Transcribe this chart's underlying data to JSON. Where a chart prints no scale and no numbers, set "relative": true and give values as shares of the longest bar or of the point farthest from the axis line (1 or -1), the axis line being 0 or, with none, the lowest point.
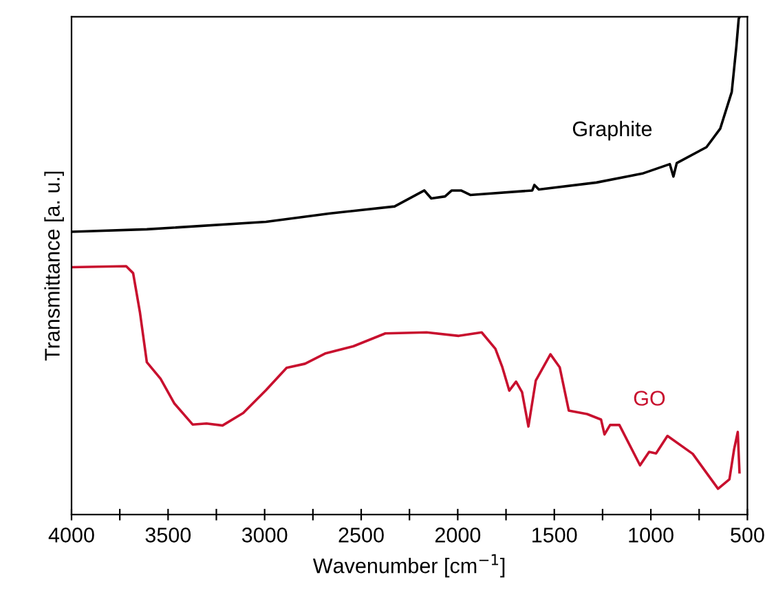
{
  "chart_data": {
    "type": "line",
    "relative": true,
    "xlabel": "Wavenumber [cm$^{−1}$]",
    "ylabel": "Transmittance [a. u.]",
    "xlim": [
      4000,
      500
    ],
    "xticks": [
      4000,
      {
        "value": 3750,
        "label": null
      },
      3500,
      {
        "value": 3250,
        "label": null
      },
      3000,
      {
        "value": 2750,
        "label": null
      },
      2500,
      {
        "value": 2250,
        "label": null
      },
      2000,
      {
        "value": 1750,
        "label": null
      },
      1500,
      {
        "value": 1250,
        "label": null
      },
      1000,
      {
        "value": 750,
        "label": null
      },
      500
    ],
    "grid": false,
    "legend": false,
    "marker": "none",
    "line_style": "solid",
    "series": [
      {
        "name": "Graphite",
        "color": "#000000",
        "x": [
          4000,
          3610,
          2993,
          2660,
          2327,
          2173,
          2137,
          2066,
          2031,
          1983,
          1935,
          1614,
          1603,
          1580,
          1282,
          1044,
          902,
          883,
          866,
          712,
          641,
          581,
          557,
          545,
          540
        ],
        "values": [
          0.568,
          0.573,
          0.588,
          0.605,
          0.619,
          0.651,
          0.635,
          0.639,
          0.651,
          0.651,
          0.642,
          0.651,
          0.662,
          0.653,
          0.667,
          0.685,
          0.704,
          0.679,
          0.706,
          0.738,
          0.775,
          0.849,
          0.941,
          0.996,
          1.0
        ]
      },
      {
        "name": "GO",
        "color": "#c8102e",
        "x": [
          4000,
          3717,
          3681,
          3646,
          3610,
          3539,
          3467,
          3373,
          3301,
          3218,
          3111,
          2993,
          2886,
          2791,
          2684,
          2541,
          2375,
          2161,
          1995,
          1876,
          1805,
          1769,
          1733,
          1698,
          1667,
          1634,
          1596,
          1520,
          1472,
          1425,
          1330,
          1258,
          1240,
          1211,
          1163,
          1056,
          1009,
          973,
          914,
          783,
          652,
          593,
          569,
          550,
          541
        ],
        "values": [
          0.497,
          0.499,
          0.485,
          0.407,
          0.306,
          0.273,
          0.223,
          0.181,
          0.183,
          0.179,
          0.204,
          0.25,
          0.295,
          0.303,
          0.324,
          0.338,
          0.364,
          0.366,
          0.359,
          0.366,
          0.333,
          0.296,
          0.249,
          0.267,
          0.246,
          0.177,
          0.269,
          0.322,
          0.296,
          0.209,
          0.202,
          0.191,
          0.161,
          0.18,
          0.18,
          0.099,
          0.126,
          0.123,
          0.158,
          0.122,
          0.052,
          0.071,
          0.131,
          0.166,
          0.085
        ]
      }
    ]
  }
}
